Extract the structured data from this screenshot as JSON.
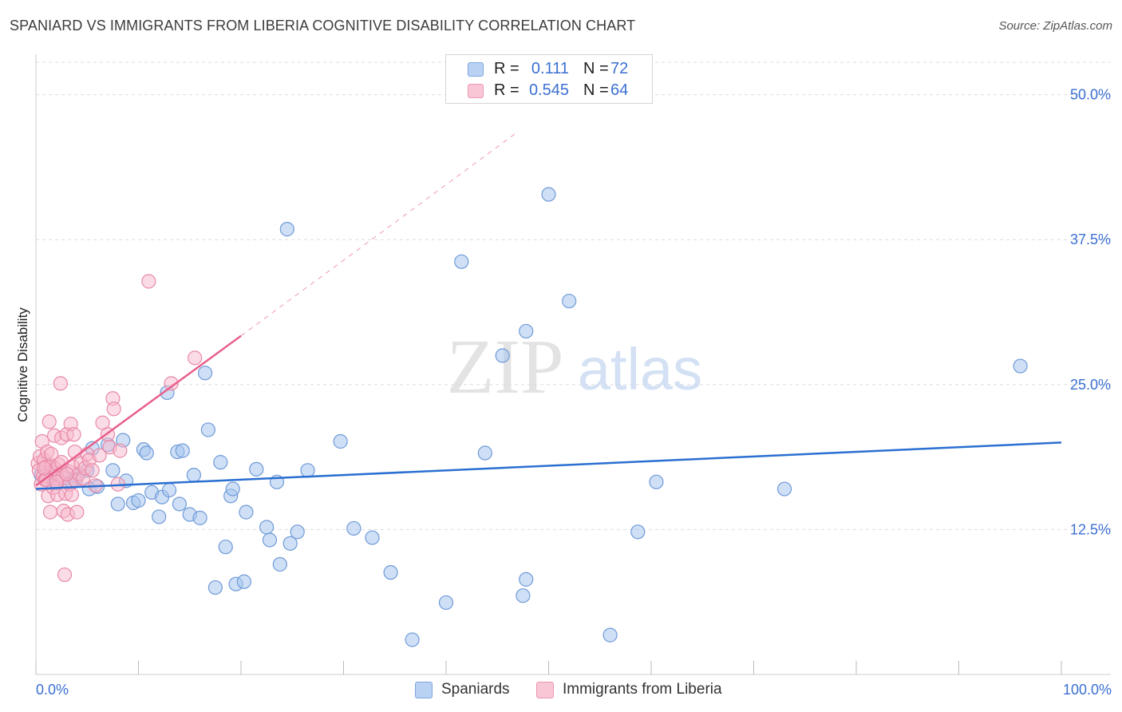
{
  "title": "SPANIARD VS IMMIGRANTS FROM LIBERIA COGNITIVE DISABILITY CORRELATION CHART",
  "source": "Source: ZipAtlas.com",
  "watermark": {
    "zip": "ZIP",
    "atlas": "atlas"
  },
  "legend_top": [
    {
      "r_label": "R =",
      "r_value": "0.111",
      "n_label": "N =",
      "n_value": "72"
    },
    {
      "r_label": "R =",
      "r_value": "0.545",
      "n_label": "N =",
      "n_value": "64"
    }
  ],
  "legend_bottom": [
    {
      "label": "Spaniards"
    },
    {
      "label": "Immigrants from Liberia"
    }
  ],
  "colors": {
    "blue_fill": "#a8c6ee",
    "blue_stroke": "#6f9ad8",
    "blue_line": "#2a6fd1",
    "pink_fill": "#f7b8cb",
    "pink_stroke": "#e88aa8",
    "pink_line": "#e8608c",
    "tick_text": "#3b6fd1",
    "grid": "#dddddd"
  },
  "chart_data": {
    "type": "scatter",
    "title": "SPANIARD VS IMMIGRANTS FROM LIBERIA COGNITIVE DISABILITY CORRELATION CHART",
    "xlabel": "",
    "ylabel": "Cognitive Disability",
    "xlim": [
      0,
      100
    ],
    "ylim": [
      0,
      53
    ],
    "x_tick_labels": [
      "0.0%",
      "100.0%"
    ],
    "y_ticks": [
      12.5,
      25.0,
      37.5,
      50.0
    ],
    "y_tick_labels": [
      "12.5%",
      "25.0%",
      "37.5%",
      "50.0%"
    ],
    "grid": "horizontal dashed",
    "legend_position": "top-center",
    "series": [
      {
        "name": "Spaniards",
        "R": 0.111,
        "N": 72,
        "trend": {
          "x": [
            0,
            100
          ],
          "y": [
            16.0,
            20.0
          ]
        },
        "points": [
          [
            0.5,
            17.2
          ],
          [
            1.0,
            16.8
          ],
          [
            1.5,
            17.0
          ],
          [
            2.0,
            16.5
          ],
          [
            2.5,
            17.3
          ],
          [
            3.0,
            16.9
          ],
          [
            3.5,
            16.6
          ],
          [
            4.0,
            17.1
          ],
          [
            5.0,
            17.6
          ],
          [
            5.2,
            16.0
          ],
          [
            5.5,
            19.5
          ],
          [
            6.0,
            16.2
          ],
          [
            7.0,
            19.8
          ],
          [
            7.5,
            17.6
          ],
          [
            8.0,
            14.7
          ],
          [
            8.5,
            20.2
          ],
          [
            8.8,
            16.7
          ],
          [
            9.5,
            14.8
          ],
          [
            10.0,
            15.0
          ],
          [
            10.5,
            19.4
          ],
          [
            10.8,
            19.1
          ],
          [
            11.3,
            15.7
          ],
          [
            12.0,
            13.6
          ],
          [
            12.3,
            15.3
          ],
          [
            13.0,
            15.9
          ],
          [
            12.8,
            24.3
          ],
          [
            13.8,
            19.2
          ],
          [
            14.0,
            14.7
          ],
          [
            14.3,
            19.3
          ],
          [
            15.0,
            13.8
          ],
          [
            15.4,
            17.2
          ],
          [
            16.0,
            13.5
          ],
          [
            16.5,
            26.0
          ],
          [
            16.8,
            21.1
          ],
          [
            17.5,
            7.5
          ],
          [
            18.0,
            18.3
          ],
          [
            18.5,
            11.0
          ],
          [
            19.0,
            15.4
          ],
          [
            19.2,
            16.0
          ],
          [
            19.5,
            7.8
          ],
          [
            20.3,
            8.0
          ],
          [
            20.5,
            14.0
          ],
          [
            21.5,
            17.7
          ],
          [
            22.5,
            12.7
          ],
          [
            22.8,
            11.6
          ],
          [
            23.5,
            16.6
          ],
          [
            23.8,
            9.5
          ],
          [
            24.5,
            38.4
          ],
          [
            24.8,
            11.3
          ],
          [
            25.5,
            12.3
          ],
          [
            26.5,
            17.6
          ],
          [
            29.7,
            20.1
          ],
          [
            31.0,
            12.6
          ],
          [
            32.8,
            11.8
          ],
          [
            34.6,
            8.8
          ],
          [
            36.7,
            3.0
          ],
          [
            40.0,
            6.2
          ],
          [
            41.5,
            35.6
          ],
          [
            43.8,
            19.1
          ],
          [
            45.5,
            27.5
          ],
          [
            47.8,
            29.6
          ],
          [
            47.5,
            6.8
          ],
          [
            47.8,
            8.2
          ],
          [
            50.0,
            41.4
          ],
          [
            52.0,
            32.2
          ],
          [
            56.0,
            3.4
          ],
          [
            58.7,
            12.3
          ],
          [
            60.5,
            16.6
          ],
          [
            73.0,
            16.0
          ],
          [
            96.0,
            26.6
          ],
          [
            1.8,
            17.4
          ],
          [
            3.8,
            16.8
          ]
        ]
      },
      {
        "name": "Immigrants from Liberia",
        "R": 0.545,
        "N": 64,
        "trend": {
          "x": [
            0,
            20
          ],
          "y": [
            16.3,
            29.2
          ]
        },
        "trend_extension": {
          "x": [
            20,
            47
          ],
          "y": [
            29.2,
            46.8
          ]
        },
        "points": [
          [
            0.2,
            18.2
          ],
          [
            0.3,
            17.6
          ],
          [
            0.4,
            18.8
          ],
          [
            0.5,
            16.4
          ],
          [
            0.6,
            20.1
          ],
          [
            0.7,
            17.1
          ],
          [
            0.8,
            18.5
          ],
          [
            0.9,
            16.8
          ],
          [
            1.0,
            17.9
          ],
          [
            1.1,
            19.2
          ],
          [
            1.2,
            15.4
          ],
          [
            1.3,
            21.8
          ],
          [
            1.4,
            14.0
          ],
          [
            1.5,
            17.4
          ],
          [
            1.6,
            18.0
          ],
          [
            1.7,
            16.1
          ],
          [
            1.8,
            20.6
          ],
          [
            1.9,
            17.7
          ],
          [
            2.0,
            16.9
          ],
          [
            2.1,
            15.5
          ],
          [
            2.2,
            18.1
          ],
          [
            2.3,
            17.2
          ],
          [
            2.4,
            25.1
          ],
          [
            2.5,
            20.4
          ],
          [
            2.6,
            17.0
          ],
          [
            2.7,
            14.1
          ],
          [
            2.8,
            8.6
          ],
          [
            2.9,
            15.6
          ],
          [
            3.0,
            20.7
          ],
          [
            3.1,
            13.8
          ],
          [
            3.2,
            17.5
          ],
          [
            3.3,
            16.4
          ],
          [
            3.4,
            21.6
          ],
          [
            3.5,
            15.5
          ],
          [
            3.6,
            17.9
          ],
          [
            3.7,
            20.7
          ],
          [
            3.8,
            19.2
          ],
          [
            3.9,
            16.7
          ],
          [
            4.0,
            14.0
          ],
          [
            4.2,
            17.3
          ],
          [
            4.4,
            18.2
          ],
          [
            4.6,
            16.9
          ],
          [
            4.8,
            17.8
          ],
          [
            5.0,
            19.0
          ],
          [
            5.2,
            18.5
          ],
          [
            5.5,
            17.6
          ],
          [
            5.8,
            16.3
          ],
          [
            6.2,
            18.9
          ],
          [
            6.5,
            21.7
          ],
          [
            7.0,
            20.7
          ],
          [
            7.2,
            19.6
          ],
          [
            7.5,
            23.8
          ],
          [
            7.6,
            22.9
          ],
          [
            8.0,
            16.4
          ],
          [
            8.2,
            19.3
          ],
          [
            11.0,
            33.9
          ],
          [
            13.2,
            25.1
          ],
          [
            15.5,
            27.3
          ],
          [
            1.0,
            16.8
          ],
          [
            2.0,
            16.6
          ],
          [
            3.0,
            17.3
          ],
          [
            1.5,
            19.0
          ],
          [
            0.8,
            17.8
          ],
          [
            2.5,
            18.3
          ]
        ]
      }
    ]
  }
}
